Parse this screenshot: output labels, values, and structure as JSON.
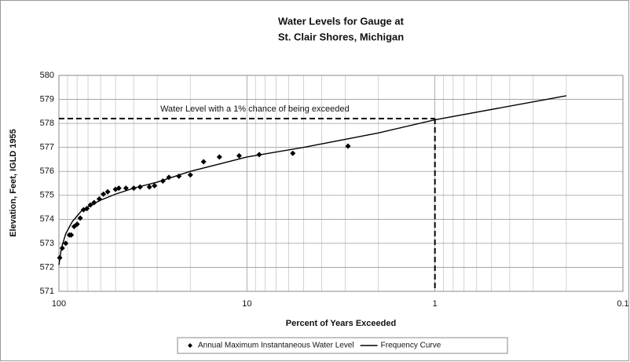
{
  "chart_data": {
    "type": "scatter",
    "title": [
      "Water Levels for Gauge at",
      "St. Clair Shores, Michigan"
    ],
    "x_label": "Percent of Years Exceeded",
    "y_label": "Elevation, Feet, IGLD 1955",
    "x_scale": "log",
    "xlim": [
      100,
      0.1
    ],
    "xticks": [
      100,
      10,
      1,
      0.1
    ],
    "ylim": [
      571,
      580
    ],
    "yticks": [
      571,
      572,
      573,
      574,
      575,
      576,
      577,
      578,
      579,
      580
    ],
    "grid": true,
    "minor_grid": true,
    "legend": "bottom",
    "series": [
      {
        "name": "Annual Maximum Instantaneous Water Level",
        "type": "scatter",
        "color": "#000000",
        "x": [
          99,
          96,
          92,
          88,
          86,
          83,
          80,
          77,
          74,
          71,
          68,
          65,
          61,
          58,
          55,
          50,
          48,
          44,
          40,
          37,
          33,
          31,
          28,
          26,
          23,
          20,
          17,
          14,
          11,
          8.6,
          5.7,
          2.9
        ],
        "values": [
          572.4,
          572.8,
          573.0,
          573.35,
          573.35,
          573.7,
          573.8,
          574.05,
          574.4,
          574.45,
          574.6,
          574.7,
          574.85,
          575.05,
          575.15,
          575.25,
          575.3,
          575.3,
          575.3,
          575.35,
          575.35,
          575.4,
          575.6,
          575.75,
          575.8,
          575.85,
          576.4,
          576.6,
          576.65,
          576.7,
          576.75,
          577.05
        ]
      },
      {
        "name": "Frequency Curve",
        "type": "line",
        "color": "#000000",
        "x": [
          100,
          97,
          92,
          85,
          75,
          60,
          50,
          40,
          30,
          20,
          10,
          5,
          2,
          1,
          0.2
        ],
        "values": [
          572.1,
          572.8,
          573.4,
          573.9,
          574.4,
          574.8,
          575.05,
          575.3,
          575.55,
          576.0,
          576.6,
          577.0,
          577.6,
          578.15,
          579.15
        ]
      }
    ],
    "reference": {
      "x": 1,
      "y": 578.2,
      "label": "Water Level with a 1% chance of being exceeded"
    }
  }
}
